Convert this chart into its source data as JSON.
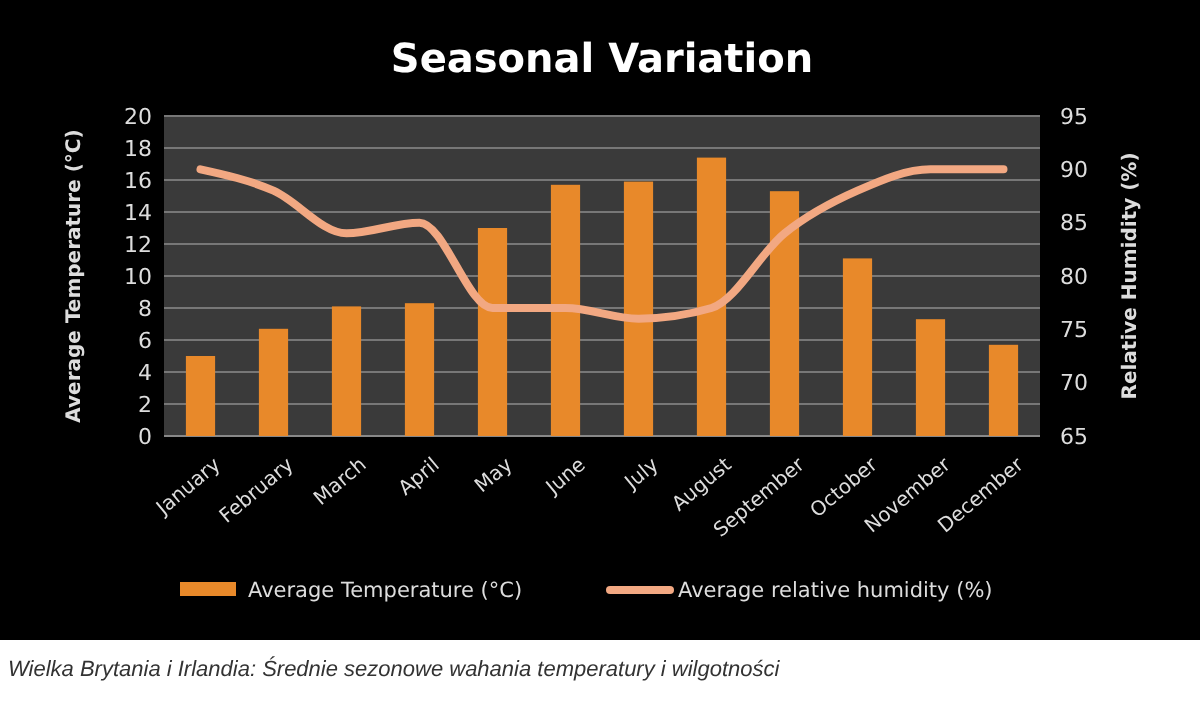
{
  "chart_data": {
    "type": "bar",
    "title": "Seasonal Variation",
    "ylabel": "Average Temperature (°C)",
    "y2label": "Relative Humidity (%)",
    "categories": [
      "January",
      "February",
      "March",
      "April",
      "May",
      "June",
      "July",
      "August",
      "September",
      "October",
      "November",
      "December"
    ],
    "series": [
      {
        "name": "Average Temperature (°C)",
        "color": "#e8892a",
        "values": [
          5,
          6.7,
          8.1,
          8.3,
          13,
          15.7,
          15.9,
          17.4,
          15.3,
          11.1,
          7.3,
          5.7
        ]
      },
      {
        "name": "Average relative humidity  (%)",
        "type": "line",
        "axis": "y2",
        "color": "#f2a882",
        "values": [
          90,
          88,
          84,
          85,
          77,
          77,
          76,
          77,
          84,
          88,
          90,
          90
        ]
      }
    ],
    "ylim": [
      0,
      20
    ],
    "yticks": [
      0,
      2,
      4,
      6,
      8,
      10,
      12,
      14,
      16,
      18,
      20
    ],
    "y2lim": [
      65,
      95
    ],
    "y2ticks": [
      65,
      70,
      75,
      80,
      85,
      90,
      95
    ],
    "grid": "y",
    "legend": "bottom",
    "annotations": [
      "Wielka Brytania i Irlandia: Średnie sezonowe wahania temperatury i wilgotności"
    ]
  }
}
